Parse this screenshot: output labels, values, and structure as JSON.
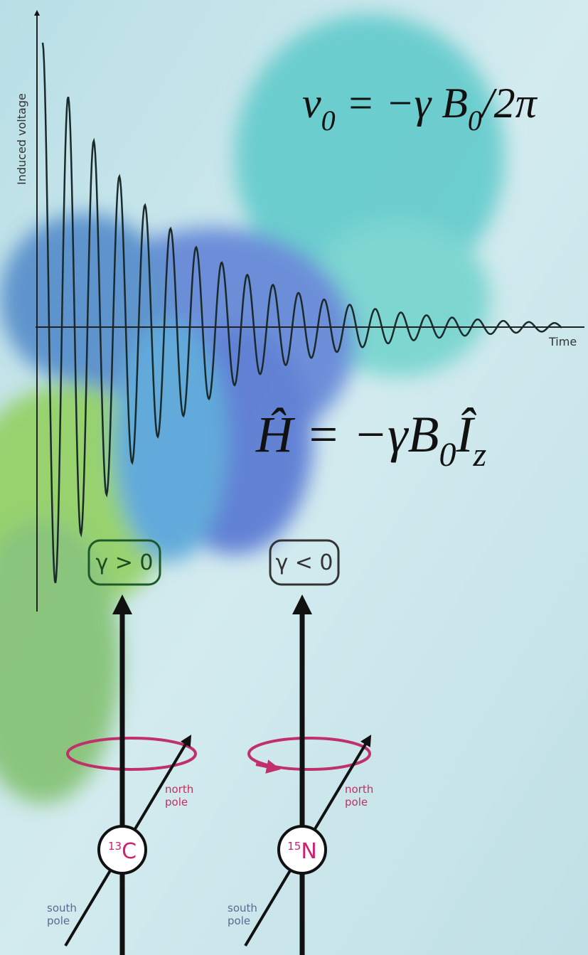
{
  "axis_labels": {
    "y": "Induced voltage",
    "x": "Time"
  },
  "equations": [
    {
      "parts": [
        "ν",
        "0",
        " = −γ B",
        "0",
        "/2π"
      ]
    },
    {
      "parts": [
        "Ĥ",
        " = −γB",
        "0",
        "Î",
        "z"
      ]
    }
  ],
  "conditions": [
    "γ > 0",
    "γ < 0"
  ],
  "nuclei": [
    {
      "mass": "13",
      "symbol": "C",
      "north": [
        "north",
        "pole"
      ],
      "south": [
        "south",
        "pole"
      ]
    },
    {
      "mass": "15",
      "symbol": "N",
      "north": [
        "north",
        "pole"
      ],
      "south": [
        "south",
        "pole"
      ]
    }
  ]
}
